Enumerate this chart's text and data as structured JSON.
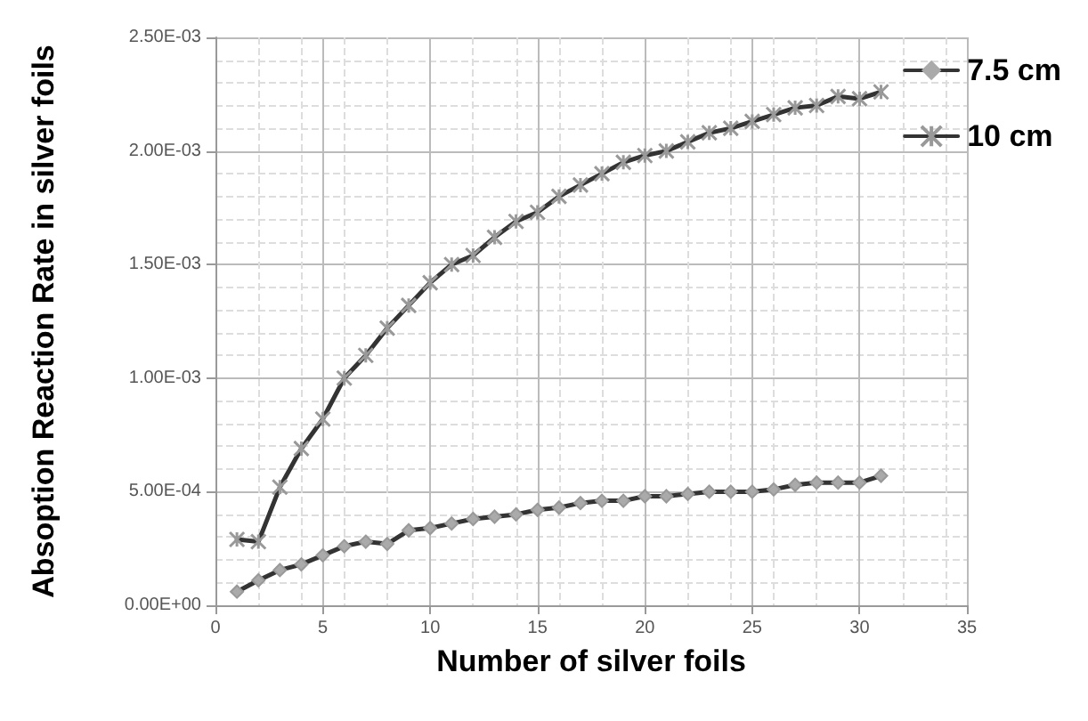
{
  "chart_data": {
    "type": "line",
    "xlabel": "Number of silver foils",
    "ylabel": "Absoption Reaction Rate in silver foils",
    "x": [
      1,
      2,
      3,
      4,
      5,
      6,
      7,
      8,
      9,
      10,
      11,
      12,
      13,
      14,
      15,
      16,
      17,
      18,
      19,
      20,
      21,
      22,
      23,
      24,
      25,
      26,
      27,
      28,
      29,
      30,
      31
    ],
    "series": [
      {
        "name": "7.5 cm",
        "color": "#333333",
        "marker": "diamond",
        "values": [
          6e-05,
          0.00011,
          0.000155,
          0.00018,
          0.00022,
          0.00026,
          0.00028,
          0.00027,
          0.00033,
          0.00034,
          0.00036,
          0.00038,
          0.00039,
          0.0004,
          0.00042,
          0.00043,
          0.00045,
          0.00046,
          0.00046,
          0.00048,
          0.00048,
          0.00049,
          0.0005,
          0.0005,
          0.0005,
          0.00051,
          0.00053,
          0.00054,
          0.00054,
          0.00054,
          0.00057
        ]
      },
      {
        "name": "10 cm",
        "color": "#333333",
        "marker": "cross",
        "values": [
          0.00029,
          0.00028,
          0.00052,
          0.00069,
          0.00082,
          0.001,
          0.0011,
          0.00122,
          0.00132,
          0.00142,
          0.0015,
          0.00154,
          0.00162,
          0.00169,
          0.00173,
          0.0018,
          0.00185,
          0.0019,
          0.00195,
          0.00198,
          0.002,
          0.00204,
          0.00208,
          0.0021,
          0.00213,
          0.00216,
          0.00219,
          0.0022,
          0.00224,
          0.00223,
          0.00226
        ]
      }
    ],
    "xlim": [
      0,
      35
    ],
    "xticks": [
      0,
      5,
      10,
      15,
      20,
      25,
      30,
      35
    ],
    "ylim": [
      0,
      0.0025
    ],
    "yticks": [
      {
        "value": 0,
        "label": "0.00E+00"
      },
      {
        "value": 0.0005,
        "label": "5.00E-04"
      },
      {
        "value": 0.001,
        "label": "1.00E-03"
      },
      {
        "value": 0.0015,
        "label": "1.50E-03"
      },
      {
        "value": 0.002,
        "label": "2.00E-03"
      },
      {
        "value": 0.0025,
        "label": "2.50E-03"
      }
    ],
    "grid": true,
    "legend": "top right"
  }
}
